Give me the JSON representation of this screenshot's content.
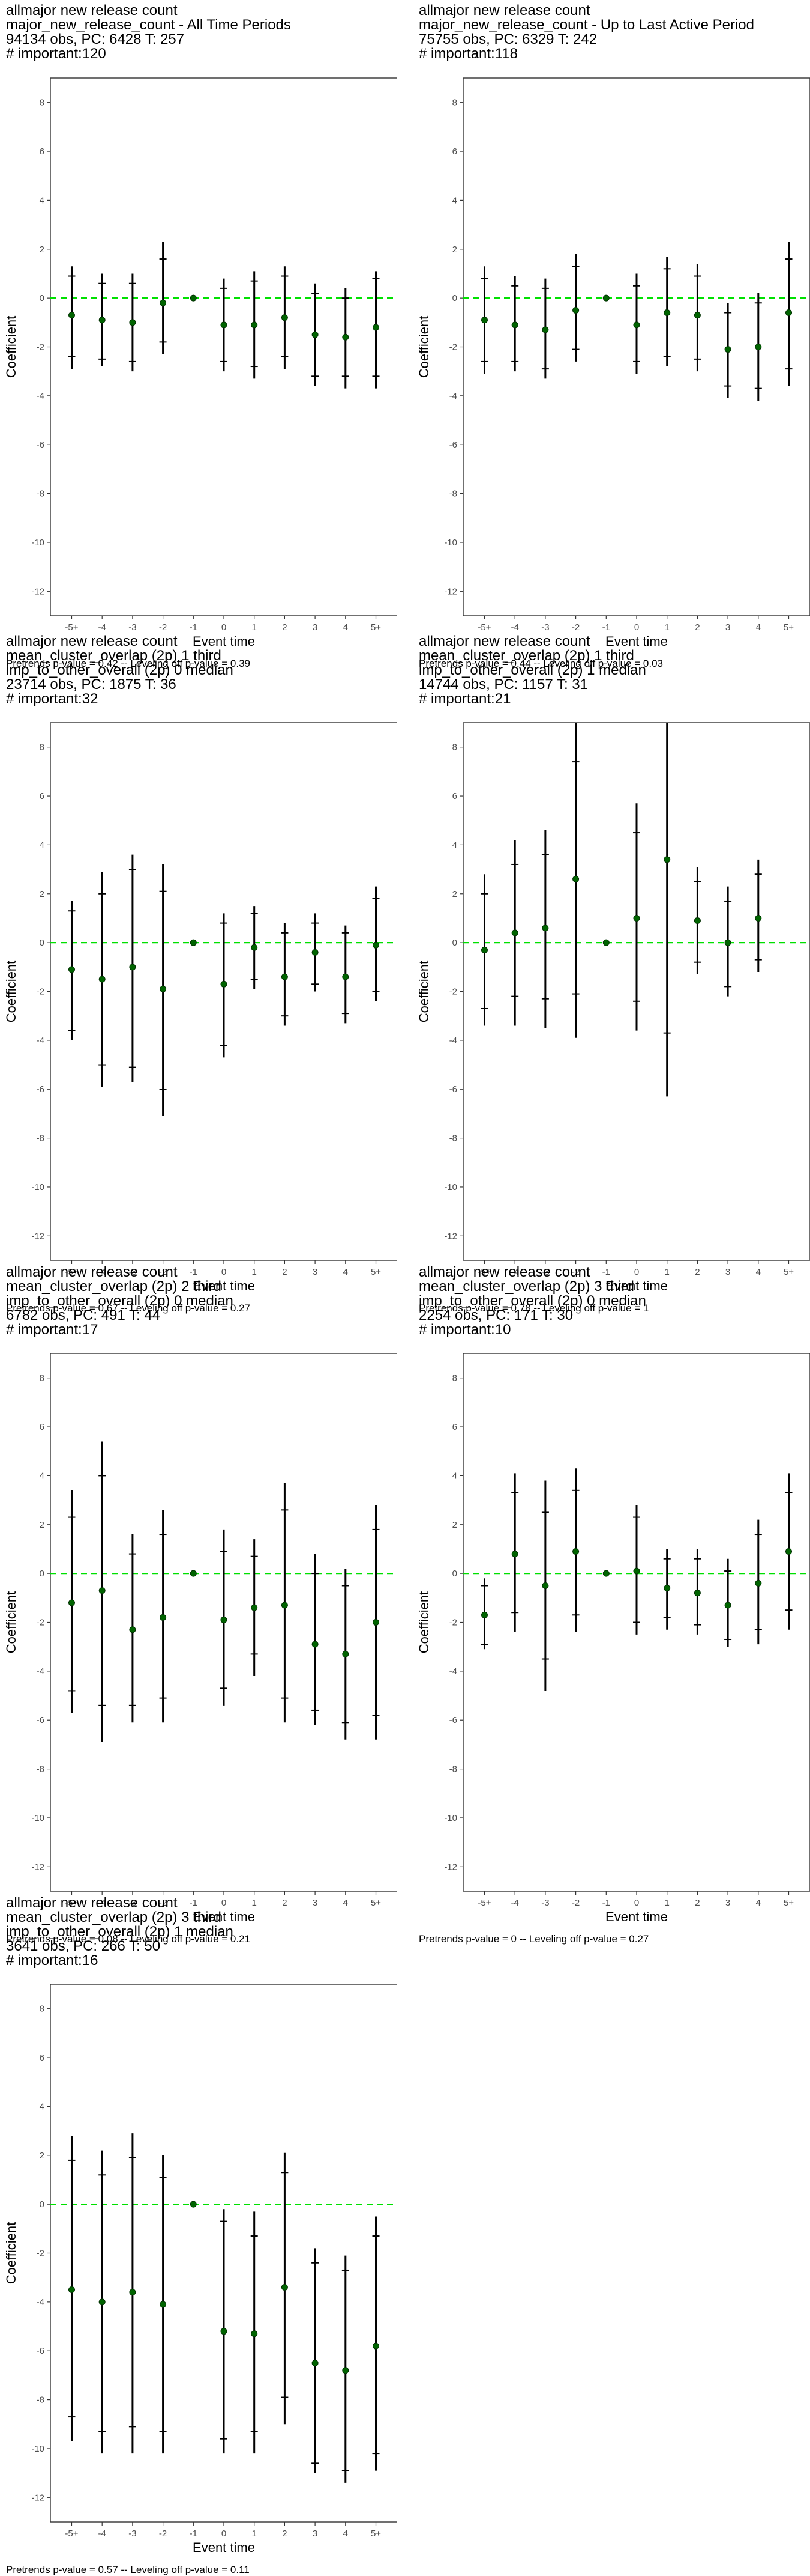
{
  "chart_data": [
    {
      "type": "scatter",
      "title_lines": [
        "allmajor new release count",
        "major_new_release_count - All Time Periods",
        "94134 obs, PC: 6428 T: 257",
        "# important:120"
      ],
      "xlabel": "Event time",
      "ylabel": "Coefficient",
      "categories": [
        "-5+",
        "-4",
        "-3",
        "-2",
        "-1",
        "0",
        "1",
        "2",
        "3",
        "4",
        "5+"
      ],
      "ylim": [
        -13,
        9
      ],
      "yticks": [
        8,
        6,
        4,
        2,
        0,
        -2,
        -4,
        -6,
        -8,
        -10,
        -12
      ],
      "reference_line": 0,
      "estimates": [
        -0.7,
        -0.9,
        -1.0,
        -0.2,
        0.0,
        -1.1,
        -1.1,
        -0.8,
        -1.5,
        -1.6,
        -1.2
      ],
      "ci95_low": [
        -2.9,
        -2.8,
        -3.0,
        -2.3,
        null,
        -3.0,
        -3.3,
        -2.9,
        -3.6,
        -3.7,
        -3.7
      ],
      "ci95_high": [
        1.3,
        1.0,
        1.0,
        2.3,
        null,
        0.8,
        1.1,
        1.3,
        0.6,
        0.4,
        1.1
      ],
      "ci90_low": [
        -2.4,
        -2.5,
        -2.6,
        -1.8,
        null,
        -2.6,
        -2.8,
        -2.4,
        -3.2,
        -3.2,
        -3.2
      ],
      "ci90_high": [
        0.9,
        0.6,
        0.6,
        1.6,
        null,
        0.4,
        0.7,
        0.9,
        0.2,
        0.0,
        0.8
      ],
      "footnote": "Pretrends p-value = 0.42 -- Leveling off p-value = 0.39"
    },
    {
      "type": "scatter",
      "title_lines": [
        "allmajor new release count",
        "major_new_release_count - Up to Last Active Period",
        "75755 obs, PC: 6329 T: 242",
        "# important:118"
      ],
      "xlabel": "Event time",
      "ylabel": "Coefficient",
      "categories": [
        "-5+",
        "-4",
        "-3",
        "-2",
        "-1",
        "0",
        "1",
        "2",
        "3",
        "4",
        "5+"
      ],
      "ylim": [
        -13,
        9
      ],
      "yticks": [
        8,
        6,
        4,
        2,
        0,
        -2,
        -4,
        -6,
        -8,
        -10,
        -12
      ],
      "reference_line": 0,
      "estimates": [
        -0.9,
        -1.1,
        -1.3,
        -0.5,
        0.0,
        -1.1,
        -0.6,
        -0.7,
        -2.1,
        -2.0,
        -0.6
      ],
      "ci95_low": [
        -3.1,
        -3.0,
        -3.3,
        -2.6,
        null,
        -3.1,
        -2.8,
        -3.0,
        -4.1,
        -4.2,
        -3.6
      ],
      "ci95_high": [
        1.3,
        0.9,
        0.8,
        1.8,
        null,
        1.0,
        1.7,
        1.4,
        -0.2,
        0.2,
        2.3
      ],
      "ci90_low": [
        -2.6,
        -2.6,
        -2.9,
        -2.1,
        null,
        -2.6,
        -2.4,
        -2.5,
        -3.6,
        -3.7,
        -2.9
      ],
      "ci90_high": [
        0.8,
        0.5,
        0.4,
        1.3,
        null,
        0.5,
        1.2,
        0.9,
        -0.6,
        -0.2,
        1.6
      ],
      "footnote": "Pretrends p-value = 0.44 -- Leveling off p-value = 0.03"
    },
    {
      "type": "scatter",
      "title_lines": [
        "allmajor new release count",
        "mean_cluster_overlap (2p) 1 third",
        "imp_to_other_overall (2p) 0 median",
        "23714 obs, PC: 1875 T: 36",
        "# important:32"
      ],
      "xlabel": "Event time",
      "ylabel": "Coefficient",
      "categories": [
        "-5+",
        "-4",
        "-3",
        "-2",
        "-1",
        "0",
        "1",
        "2",
        "3",
        "4",
        "5+"
      ],
      "ylim": [
        -13,
        9
      ],
      "yticks": [
        8,
        6,
        4,
        2,
        0,
        -2,
        -4,
        -6,
        -8,
        -10,
        -12
      ],
      "reference_line": 0,
      "estimates": [
        -1.1,
        -1.5,
        -1.0,
        -1.9,
        0.0,
        -1.7,
        -0.2,
        -1.4,
        -0.4,
        -1.4,
        -0.1
      ],
      "ci95_low": [
        -4.0,
        -5.9,
        -5.7,
        -7.1,
        null,
        -4.7,
        -1.9,
        -3.4,
        -2.0,
        -3.3,
        -2.4
      ],
      "ci95_high": [
        1.7,
        2.9,
        3.6,
        3.2,
        null,
        1.2,
        1.5,
        0.8,
        1.2,
        0.7,
        2.3
      ],
      "ci90_low": [
        -3.6,
        -5.0,
        -5.1,
        -6.0,
        null,
        -4.2,
        -1.5,
        -3.0,
        -1.7,
        -2.9,
        -2.0
      ],
      "ci90_high": [
        1.3,
        2.0,
        3.0,
        2.1,
        null,
        0.8,
        1.2,
        0.4,
        0.8,
        0.4,
        1.8
      ],
      "footnote": "Pretrends p-value = 0.67 -- Leveling off p-value = 0.27"
    },
    {
      "type": "scatter",
      "title_lines": [
        "allmajor new release count",
        "mean_cluster_overlap (2p) 1 third",
        "imp_to_other_overall (2p) 1 median",
        "14744 obs, PC: 1157 T: 31",
        "# important:21"
      ],
      "xlabel": "Event time",
      "ylabel": "Coefficient",
      "categories": [
        "-5+",
        "-4",
        "-3",
        "-2",
        "-1",
        "0",
        "1",
        "2",
        "3",
        "4",
        "5+"
      ],
      "ylim": [
        -13,
        9
      ],
      "yticks": [
        8,
        6,
        4,
        2,
        0,
        -2,
        -4,
        -6,
        -8,
        -10,
        -12
      ],
      "reference_line": 0,
      "estimates": [
        -0.3,
        0.4,
        0.6,
        2.6,
        0.0,
        1.0,
        3.4,
        0.9,
        0.0,
        1.0,
        null
      ],
      "ci95_low": [
        -3.4,
        -3.4,
        -3.5,
        -3.9,
        null,
        -3.6,
        -6.3,
        -1.3,
        -2.2,
        -1.2,
        null
      ],
      "ci95_high": [
        2.8,
        4.2,
        4.6,
        9.0,
        null,
        5.7,
        9.0,
        3.1,
        2.3,
        3.4,
        null
      ],
      "ci90_low": [
        -2.7,
        -2.2,
        -2.3,
        -2.1,
        null,
        -2.4,
        -3.7,
        -0.8,
        -1.8,
        -0.7,
        null
      ],
      "ci90_high": [
        2.0,
        3.2,
        3.6,
        7.4,
        null,
        4.5,
        9.0,
        2.5,
        1.7,
        2.8,
        null
      ],
      "footnote": "Pretrends p-value = 0.78 -- Leveling off p-value = 1"
    },
    {
      "type": "scatter",
      "title_lines": [
        "allmajor new release count",
        "mean_cluster_overlap (2p) 2 third",
        "imp_to_other_overall (2p) 0 median",
        "6782 obs, PC: 491 T: 44",
        "# important:17"
      ],
      "xlabel": "Event time",
      "ylabel": "Coefficient",
      "categories": [
        "-5+",
        "-4",
        "-3",
        "-2",
        "-1",
        "0",
        "1",
        "2",
        "3",
        "4",
        "5+"
      ],
      "ylim": [
        -13,
        9
      ],
      "yticks": [
        8,
        6,
        4,
        2,
        0,
        -2,
        -4,
        -6,
        -8,
        -10,
        -12
      ],
      "reference_line": 0,
      "estimates": [
        -1.2,
        -0.7,
        -2.3,
        -1.8,
        0.0,
        -1.9,
        -1.4,
        -1.3,
        -2.9,
        -3.3,
        -2.0
      ],
      "ci95_low": [
        -5.7,
        -6.9,
        -6.1,
        -6.1,
        null,
        -5.4,
        -4.2,
        -6.1,
        -6.2,
        -6.8,
        -6.8
      ],
      "ci95_high": [
        3.4,
        5.4,
        1.6,
        2.6,
        null,
        1.8,
        1.4,
        3.7,
        0.8,
        0.2,
        2.8
      ],
      "ci90_low": [
        -4.8,
        -5.4,
        -5.4,
        -5.1,
        null,
        -4.7,
        -3.3,
        -5.1,
        -5.6,
        -6.1,
        -5.8
      ],
      "ci90_high": [
        2.3,
        4.0,
        0.8,
        1.6,
        null,
        0.9,
        0.7,
        2.6,
        0.0,
        -0.5,
        1.8
      ],
      "footnote": "Pretrends p-value = 0.08 -- Leveling off p-value = 0.21"
    },
    {
      "type": "scatter",
      "title_lines": [
        "allmajor new release count",
        "mean_cluster_overlap (2p) 3 third",
        "imp_to_other_overall (2p) 0 median",
        "2254 obs, PC: 171 T: 30",
        "# important:10"
      ],
      "xlabel": "Event time",
      "ylabel": "Coefficient",
      "categories": [
        "-5+",
        "-4",
        "-3",
        "-2",
        "-1",
        "0",
        "1",
        "2",
        "3",
        "4",
        "5+"
      ],
      "ylim": [
        -13,
        9
      ],
      "yticks": [
        8,
        6,
        4,
        2,
        0,
        -2,
        -4,
        -6,
        -8,
        -10,
        -12
      ],
      "reference_line": 0,
      "estimates": [
        -1.7,
        0.8,
        -0.5,
        0.9,
        0.0,
        0.1,
        -0.6,
        -0.8,
        -1.3,
        -0.4,
        0.9
      ],
      "ci95_low": [
        -3.1,
        -2.4,
        -4.8,
        -2.4,
        null,
        -2.5,
        -2.3,
        -2.5,
        -3.0,
        -2.9,
        -2.3
      ],
      "ci95_high": [
        -0.2,
        4.1,
        3.8,
        4.3,
        null,
        2.8,
        1.0,
        1.0,
        0.6,
        2.2,
        4.1
      ],
      "ci90_low": [
        -2.9,
        -1.6,
        -3.5,
        -1.7,
        null,
        -2.0,
        -1.8,
        -2.1,
        -2.7,
        -2.3,
        -1.5
      ],
      "ci90_high": [
        -0.5,
        3.3,
        2.5,
        3.4,
        null,
        2.3,
        0.6,
        0.6,
        0.1,
        1.6,
        3.3
      ],
      "footnote": "Pretrends p-value = 0 -- Leveling off p-value = 0.27"
    },
    {
      "type": "scatter",
      "title_lines": [
        "allmajor new release count",
        "mean_cluster_overlap (2p) 3 third",
        "imp_to_other_overall (2p) 1 median",
        "3641 obs, PC: 266 T: 50",
        "# important:16"
      ],
      "xlabel": "Event time",
      "ylabel": "Coefficient",
      "categories": [
        "-5+",
        "-4",
        "-3",
        "-2",
        "-1",
        "0",
        "1",
        "2",
        "3",
        "4",
        "5+"
      ],
      "ylim": [
        -13,
        9
      ],
      "yticks": [
        8,
        6,
        4,
        2,
        0,
        -2,
        -4,
        -6,
        -8,
        -10,
        -12
      ],
      "reference_line": 0,
      "estimates": [
        -3.5,
        -4.0,
        -3.6,
        -4.1,
        0.0,
        -5.2,
        -5.3,
        -3.4,
        -6.5,
        -6.8,
        -5.8
      ],
      "ci95_low": [
        -9.7,
        -10.2,
        -10.2,
        -10.2,
        null,
        -10.2,
        -10.2,
        -9.0,
        -11.0,
        -11.4,
        -10.9
      ],
      "ci95_high": [
        2.8,
        2.2,
        2.9,
        2.0,
        null,
        -0.2,
        -0.3,
        2.1,
        -1.8,
        -2.1,
        -0.5
      ],
      "ci90_low": [
        -8.7,
        -9.3,
        -9.1,
        -9.3,
        null,
        -9.6,
        -9.3,
        -7.9,
        -10.6,
        -10.9,
        -10.2
      ],
      "ci90_high": [
        1.8,
        1.2,
        1.9,
        1.1,
        null,
        -0.7,
        -1.3,
        1.3,
        -2.4,
        -2.7,
        -1.3
      ],
      "footnote": "Pretrends p-value = 0.57 -- Leveling off p-value = 0.11"
    }
  ],
  "colors": {
    "reference_line": "#00e000",
    "point": "#006400",
    "interval": "#000000",
    "frame": "#333333"
  }
}
